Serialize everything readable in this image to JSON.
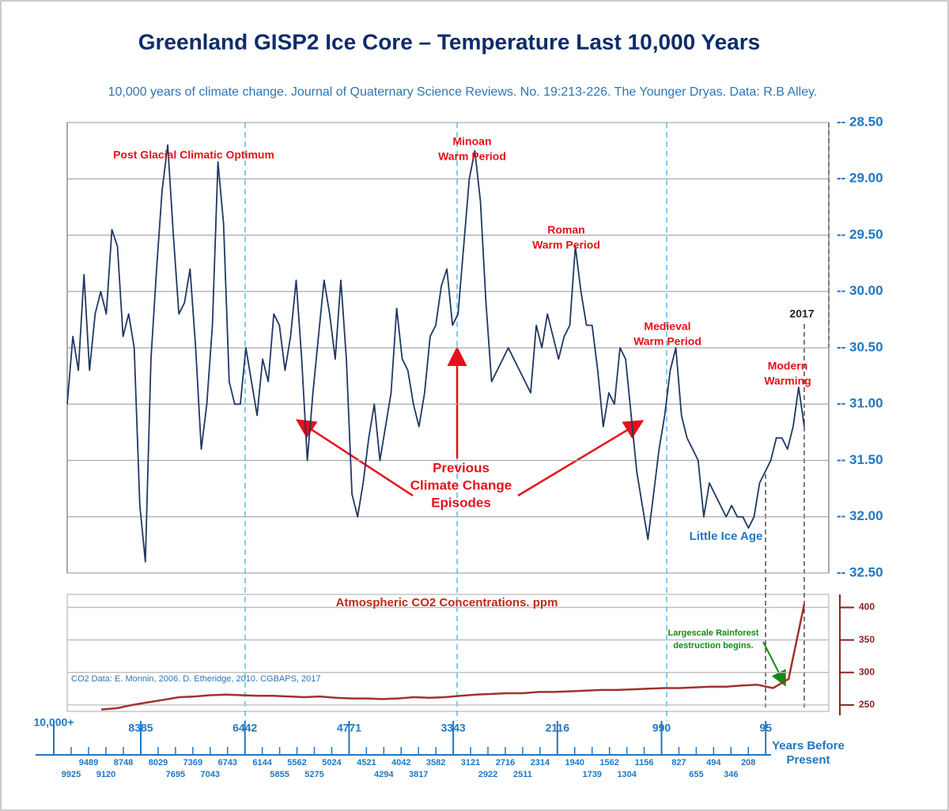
{
  "title": "Greenland GISP2 Ice Core – Temperature Last 10,000 Years",
  "subtitle": "10,000 years of climate change. Journal of Quaternary Science Reviews. No. 19:213-226. The Younger Dryas. Data: R.B Alley.",
  "chart_data": [
    {
      "type": "line",
      "color": "#1f3864",
      "grid": true,
      "ylim": [
        32.5,
        28.5
      ],
      "yticks": [
        {
          "value": 28.5,
          "label": "-- 28.50"
        },
        {
          "value": 29,
          "label": "-- 29.00"
        },
        {
          "value": 29.5,
          "label": "-- 29.50"
        },
        {
          "value": 30,
          "label": "-- 30.00"
        },
        {
          "value": 30.5,
          "label": "-- 30.50"
        },
        {
          "value": 31,
          "label": "-- 31.00"
        },
        {
          "value": 31.5,
          "label": "-- 31.50"
        },
        {
          "value": 32,
          "label": "-- 32.00"
        },
        {
          "value": 32.5,
          "label": "-- 32.50"
        }
      ],
      "values": [
        31.0,
        30.4,
        30.7,
        29.85,
        30.7,
        30.2,
        30.0,
        30.2,
        29.45,
        29.6,
        30.4,
        30.2,
        30.5,
        31.9,
        32.4,
        30.6,
        29.8,
        29.1,
        28.7,
        29.5,
        30.2,
        30.1,
        29.8,
        30.5,
        31.4,
        31.0,
        30.3,
        28.85,
        29.4,
        30.8,
        31.0,
        31.0,
        30.5,
        30.8,
        31.1,
        30.6,
        30.8,
        30.2,
        30.3,
        30.7,
        30.4,
        29.9,
        30.6,
        31.5,
        30.9,
        30.4,
        29.9,
        30.2,
        30.6,
        29.9,
        30.6,
        31.8,
        32.0,
        31.7,
        31.3,
        31.0,
        31.5,
        31.2,
        30.9,
        30.15,
        30.6,
        30.7,
        31.0,
        31.2,
        30.9,
        30.4,
        30.3,
        29.95,
        29.8,
        30.3,
        30.2,
        29.6,
        29.0,
        28.75,
        29.2,
        30.1,
        30.8,
        30.7,
        30.6,
        30.5,
        30.6,
        30.7,
        30.8,
        30.9,
        30.3,
        30.5,
        30.2,
        30.4,
        30.6,
        30.4,
        30.3,
        29.6,
        30.0,
        30.3,
        30.3,
        30.7,
        31.2,
        30.9,
        31.0,
        30.5,
        30.6,
        31.1,
        31.6,
        31.9,
        32.2,
        31.8,
        31.4,
        31.1,
        30.7,
        30.5,
        31.1,
        31.3,
        31.4,
        31.5,
        32.0,
        31.7,
        31.8,
        31.9,
        32.0,
        31.9,
        32.0,
        32.0,
        32.1,
        32.0,
        31.7,
        31.6,
        31.5,
        31.3,
        31.3,
        31.4,
        31.2,
        30.85,
        31.2
      ],
      "annotations": [
        {
          "text": [
            "Post Glacial  Climatic Optimum"
          ],
          "color": "#e8101a"
        },
        {
          "text": [
            "Minoan",
            "Warm Period"
          ],
          "color": "#e8101a"
        },
        {
          "text": [
            "Roman",
            "Warm Period"
          ],
          "color": "#e8101a"
        },
        {
          "text": [
            "Medieval",
            "Warm Period"
          ],
          "color": "#e8101a"
        },
        {
          "text": [
            "Little Ice Age"
          ],
          "color": "#1f77c4"
        },
        {
          "text": [
            "2017"
          ],
          "color": "#222222"
        },
        {
          "text": [
            "Modern",
            "Warming"
          ],
          "color": "#e8101a"
        },
        {
          "text": [
            "Previous",
            "Climate Change",
            "Episodes"
          ],
          "color": "#e8101a"
        }
      ],
      "xticks": [
        {
          "value": 10000,
          "label": "10,000+"
        },
        8385,
        6442,
        4771,
        3343,
        2116,
        990,
        95
      ],
      "x_minor_ticks": [
        9925,
        9489,
        9120,
        8748,
        8029,
        7695,
        7369,
        7043,
        6743,
        6144,
        5855,
        5562,
        5275,
        5024,
        4521,
        4294,
        4042,
        3817,
        3582,
        3121,
        2922,
        2716,
        2511,
        2314,
        1940,
        1739,
        1562,
        1304,
        1156,
        827,
        655,
        494,
        346,
        208
      ],
      "xlabel": [
        "Years Before",
        "Present"
      ]
    },
    {
      "type": "line",
      "color": "#a0322d",
      "ylim": [
        234,
        420
      ],
      "yticks": [
        250,
        300,
        350,
        400
      ],
      "grid": true,
      "values": [
        243,
        245,
        250,
        254,
        258,
        262,
        263,
        265,
        266,
        265,
        264,
        264,
        263,
        262,
        263,
        261,
        260,
        260,
        259,
        260,
        262,
        261,
        262,
        264,
        266,
        267,
        268,
        268,
        270,
        270,
        271,
        272,
        273,
        273,
        274,
        275,
        276,
        276,
        277,
        278,
        278,
        280,
        281,
        276,
        290,
        405
      ],
      "annotations": [
        {
          "text": [
            "Atmospheric CO2 Concentrations. ppm"
          ],
          "color": "#c0281e"
        },
        {
          "text": [
            "CO2 Data: E. Monnin, 2006. D. Etheridge, 2010. CGBAPS, 2017"
          ],
          "color": "#2e75b6"
        },
        {
          "text": [
            "Largescale Rainforest",
            "destruction begins."
          ],
          "color": "#138a13"
        }
      ]
    }
  ]
}
